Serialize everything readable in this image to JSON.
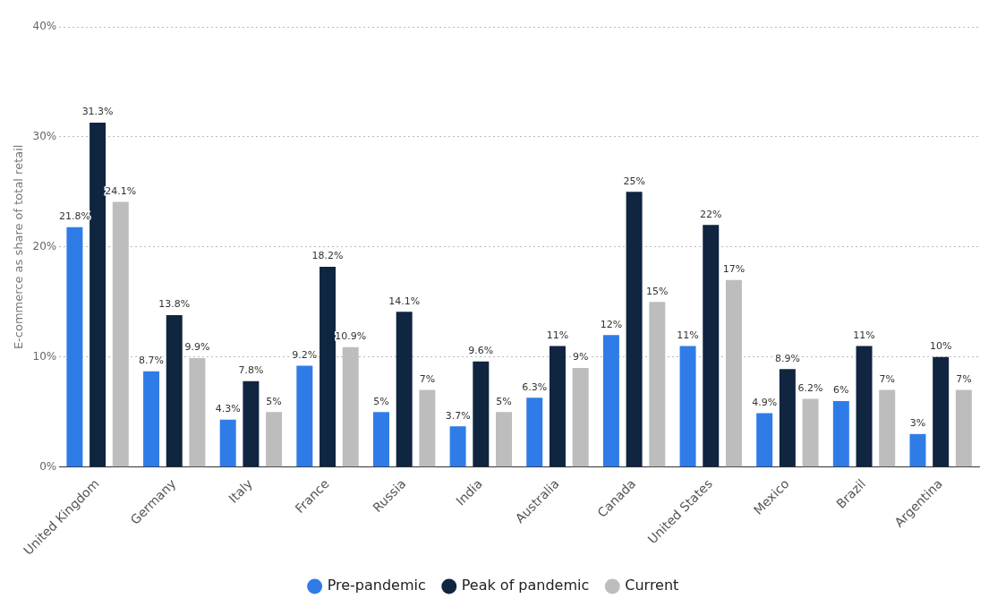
{
  "chart_data": {
    "type": "bar",
    "ylabel": "E-commerce as share of total retail",
    "categories": [
      "United Kingdom",
      "Germany",
      "Italy",
      "France",
      "Russia",
      "India",
      "Australia",
      "Canada",
      "United States",
      "Mexico",
      "Brazil",
      "Argentina"
    ],
    "series": [
      {
        "name": "Pre-pandemic",
        "color": "#2f7ce8",
        "values": [
          21.8,
          8.7,
          4.3,
          9.2,
          5,
          3.7,
          6.3,
          12,
          11,
          4.9,
          6,
          3
        ],
        "value_labels": [
          "21.8%",
          "8.7%",
          "4.3%",
          "9.2%",
          "5%",
          "3.7%",
          "6.3%",
          "12%",
          "11%",
          "4.9%",
          "6%",
          "3%"
        ]
      },
      {
        "name": "Peak of pandemic",
        "color": "#0f2540",
        "values": [
          31.3,
          13.8,
          7.8,
          18.2,
          14.1,
          9.6,
          11,
          25,
          22,
          8.9,
          11,
          10
        ],
        "value_labels": [
          "31.3%",
          "13.8%",
          "7.8%",
          "18.2%",
          "14.1%",
          "9.6%",
          "11%",
          "25%",
          "22%",
          "8.9%",
          "11%",
          "10%"
        ]
      },
      {
        "name": "Current",
        "color": "#bdbdbd",
        "values": [
          24.1,
          9.9,
          5,
          10.9,
          7,
          5,
          9,
          15,
          17,
          6.2,
          7,
          7
        ],
        "value_labels": [
          "24.1%",
          "9.9%",
          "5%",
          "10.9%",
          "7%",
          "5%",
          "9%",
          "15%",
          "17%",
          "6.2%",
          "7%",
          "7%"
        ]
      }
    ],
    "ylim": [
      0,
      40
    ],
    "yticks": [
      {
        "value": 0,
        "label": "0%"
      },
      {
        "value": 10,
        "label": "10%"
      },
      {
        "value": 20,
        "label": "20%"
      },
      {
        "value": 30,
        "label": "30%"
      },
      {
        "value": 40,
        "label": "40%"
      }
    ],
    "grid": "y",
    "line_style": "dotted",
    "legend": "bottom"
  }
}
